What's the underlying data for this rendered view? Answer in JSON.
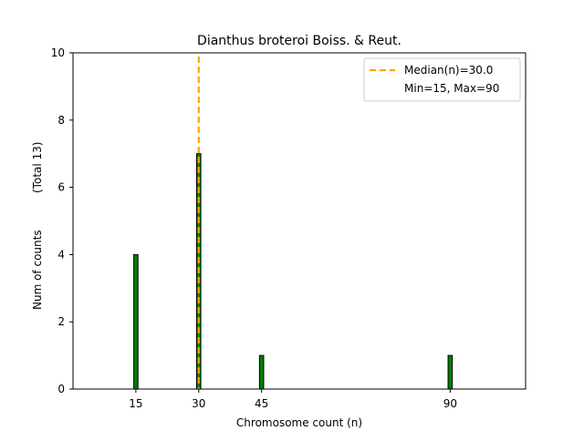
{
  "chart_data": {
    "type": "bar",
    "title": "Dianthus broteroi Boiss. & Reut.",
    "xlabel": "Chromosome count (n)",
    "ylabel": "Num of counts",
    "ylabel_total": "(Total 13)",
    "xlim": [
      0,
      108
    ],
    "ylim": [
      0,
      10
    ],
    "x_ticks": [
      15,
      30,
      45,
      90
    ],
    "y_ticks": [
      0,
      2,
      4,
      6,
      8,
      10
    ],
    "bar_width": 1,
    "series": [
      {
        "x": [
          15,
          30,
          45,
          90
        ],
        "values": [
          4,
          7,
          1,
          1
        ]
      }
    ],
    "bar_color": "#008000",
    "median": 30.0,
    "median_color": "#FFA500",
    "legend": {
      "position": "upper right",
      "entries": [
        "Median(n)=30.0",
        "Min=15, Max=90"
      ]
    },
    "grid": false
  }
}
